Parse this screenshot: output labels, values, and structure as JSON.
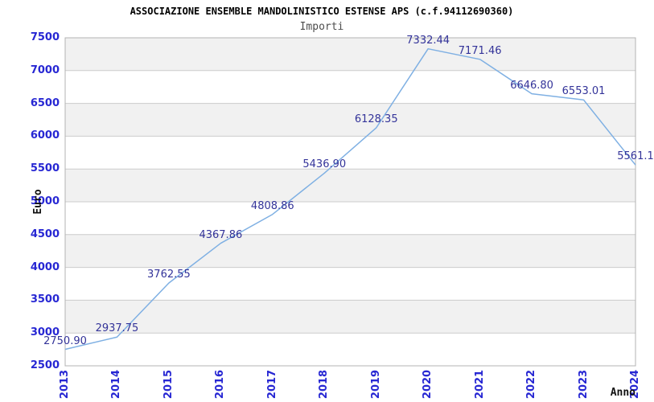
{
  "chart": {
    "title": "ASSOCIAZIONE ENSEMBLE MANDOLINISTICO ESTENSE APS (c.f.94112690360)",
    "subtitle": "Importi",
    "ylabel": "Euro",
    "xlabel": "Anno"
  },
  "colors": {
    "line": "#7fb0e3",
    "tick_label": "#2727d3",
    "point_label": "#333399",
    "band_gray": "#f1f1f1",
    "band_white": "#ffffff",
    "gridline": "#cccccc",
    "plot_border": "#b3b3b3",
    "title": "#000000",
    "subtitle": "#4d4d4d"
  },
  "chart_data": {
    "type": "line",
    "title": "ASSOCIAZIONE ENSEMBLE MANDOLINISTICO ESTENSE APS (c.f.94112690360)",
    "subtitle": "Importi",
    "xlabel": "Anno",
    "ylabel": "Euro",
    "x": [
      2013,
      2014,
      2015,
      2016,
      2017,
      2018,
      2019,
      2020,
      2021,
      2022,
      2023,
      2024
    ],
    "x_tick_labels": [
      "2013",
      "2014",
      "2015",
      "2016",
      "2017",
      "2018",
      "2019",
      "2020",
      "2021",
      "2022",
      "2023",
      "2024"
    ],
    "series": [
      {
        "name": "Importi",
        "values": [
          2750.9,
          2937.75,
          3762.55,
          4367.86,
          4808.86,
          5436.9,
          6128.35,
          7332.44,
          7171.46,
          6646.8,
          6553.01,
          5561.1
        ]
      }
    ],
    "point_labels": [
      "2750.90",
      "2937.75",
      "3762.55",
      "4367.86",
      "4808.86",
      "5436.90",
      "6128.35",
      "7332.44",
      "7171.46",
      "6646.80",
      "6553.01",
      "5561.1"
    ],
    "ylim": [
      2500,
      7500
    ],
    "y_tick_step": 500,
    "y_tick_labels": [
      "2500",
      "3000",
      "3500",
      "4000",
      "4500",
      "5000",
      "5500",
      "6000",
      "6500",
      "7000",
      "7500"
    ],
    "grid": "horizontal-only",
    "background_bands": "alternating gray/white per 500, gray at top band",
    "legend": "none"
  }
}
